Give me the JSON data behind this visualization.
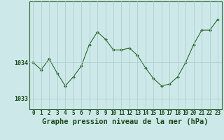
{
  "x": [
    0,
    1,
    2,
    3,
    4,
    5,
    6,
    7,
    8,
    9,
    10,
    11,
    12,
    13,
    14,
    15,
    16,
    17,
    18,
    19,
    20,
    21,
    22,
    23
  ],
  "y": [
    1034.0,
    1033.8,
    1034.1,
    1033.7,
    1033.35,
    1033.6,
    1033.9,
    1034.5,
    1034.85,
    1034.65,
    1034.35,
    1034.35,
    1034.4,
    1034.2,
    1033.85,
    1033.55,
    1033.35,
    1033.4,
    1033.6,
    1034.0,
    1034.5,
    1034.9,
    1034.9,
    1035.2
  ],
  "line_color": "#2d6a2d",
  "marker_color": "#2d6a2d",
  "bg_color": "#cce8e8",
  "plot_bg_color": "#cce8e8",
  "grid_color": "#aacccc",
  "border_color": "#336633",
  "title": "Graphe pression niveau de la mer (hPa)",
  "ytick_labels": [
    "1033",
    "1034"
  ],
  "ytick_values": [
    1033,
    1034
  ],
  "ylim_min": 1032.7,
  "ylim_max": 1035.7,
  "xlim_min": -0.5,
  "xlim_max": 23.5,
  "title_fontsize": 7.5,
  "tick_fontsize": 5.5
}
